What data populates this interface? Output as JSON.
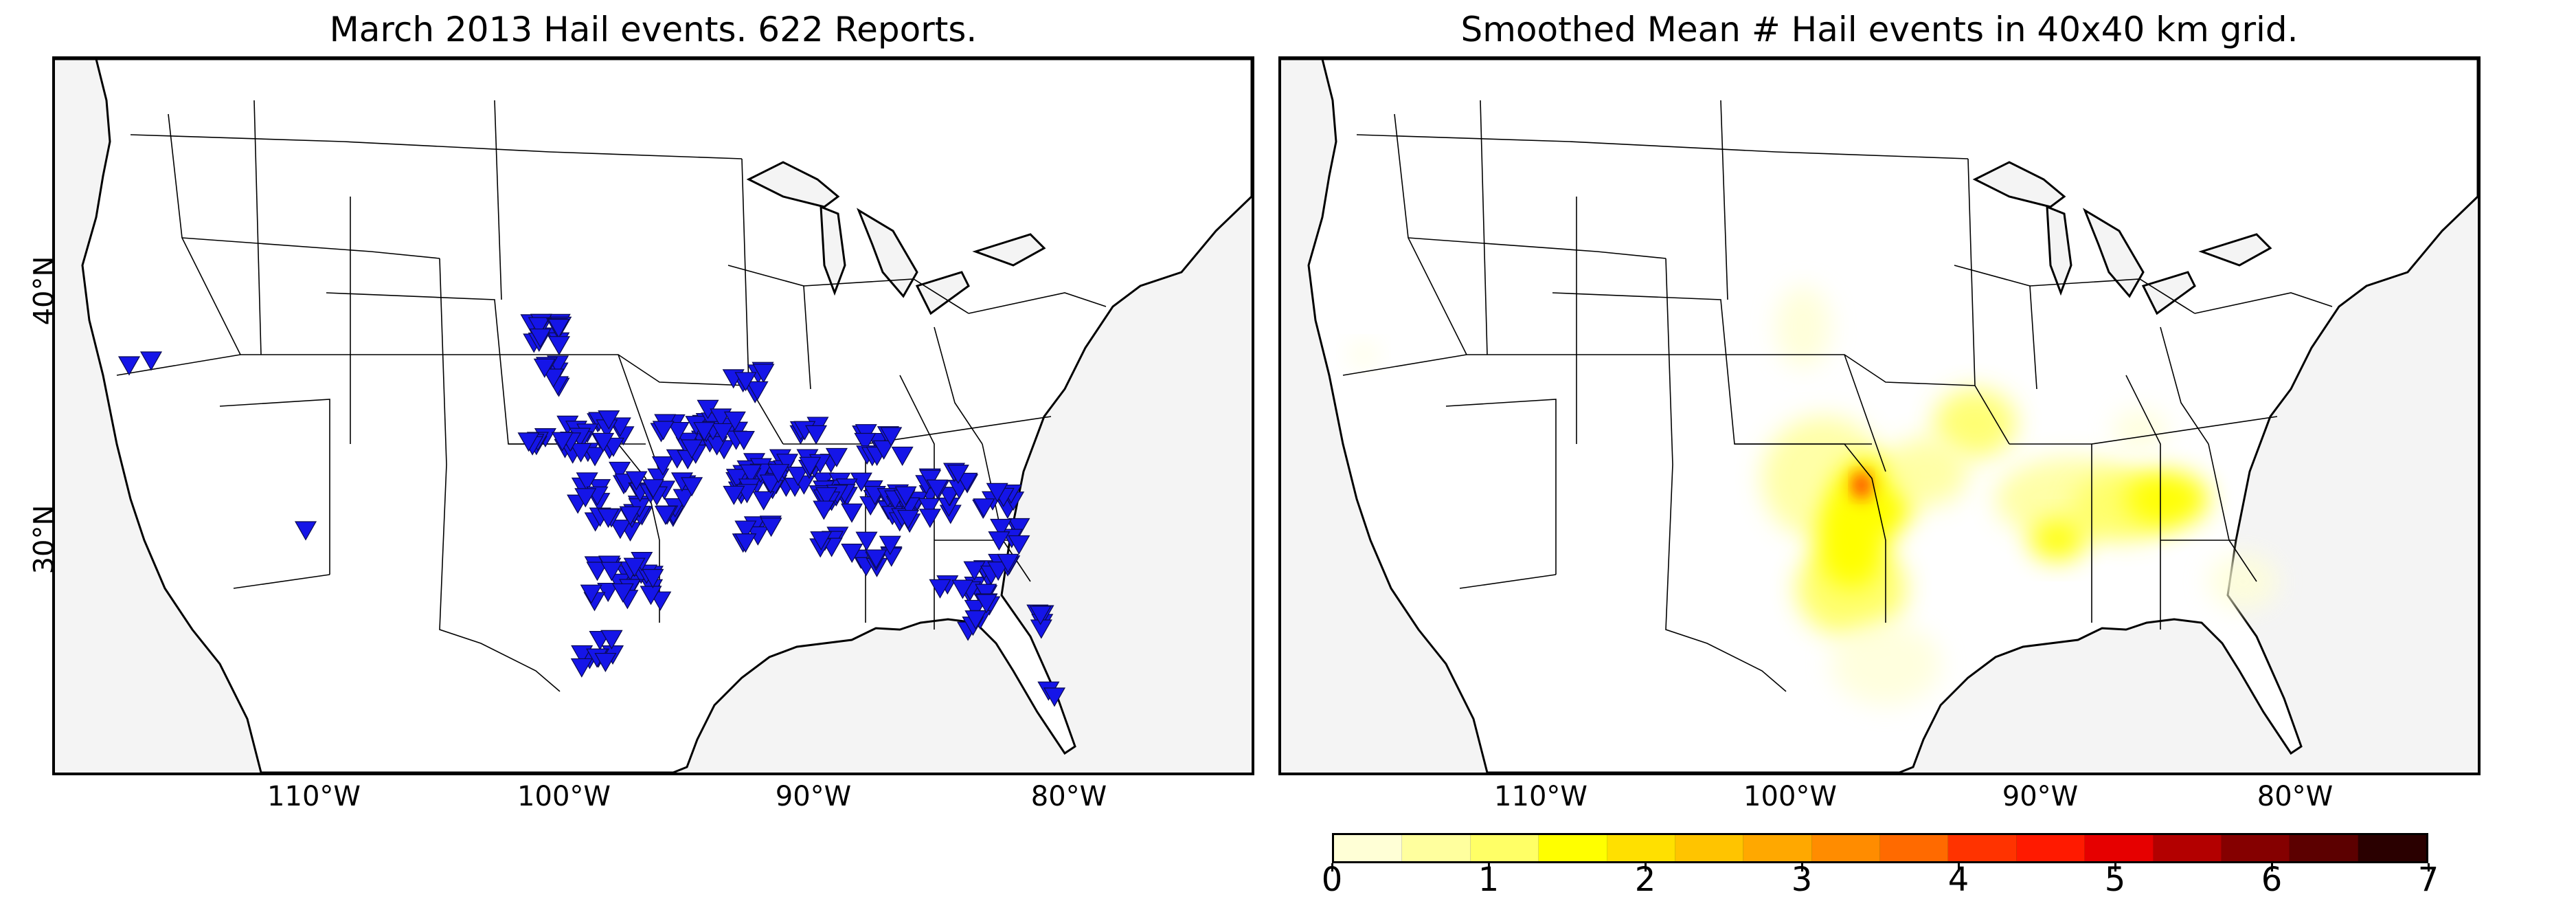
{
  "left_panel": {
    "title": "March 2013 Hail events. 622 Reports.",
    "marker_color": "#1515e8"
  },
  "right_panel": {
    "title": "Smoothed Mean # Hail events in 40x40 km grid."
  },
  "axes": {
    "lat_labels": [
      "40°N",
      "30°N"
    ],
    "lon_labels": [
      "110°W",
      "100°W",
      "90°W",
      "80°W"
    ]
  },
  "colorbar": {
    "tick_labels": [
      "0",
      "1",
      "2",
      "3",
      "4",
      "5",
      "6",
      "7"
    ],
    "min": 0,
    "max": 7,
    "colors": [
      "#ffffd6",
      "#ffff9e",
      "#ffff66",
      "#ffff00",
      "#ffe000",
      "#ffc400",
      "#ffa800",
      "#ff8c00",
      "#ff6a00",
      "#ff3300",
      "#ff1a00",
      "#e60000",
      "#b30000",
      "#850000",
      "#5c0000",
      "#2a0000"
    ]
  },
  "map_colors": {
    "land": "#ffffff",
    "ocean": "#f4f4f4",
    "border": "#000000"
  }
}
